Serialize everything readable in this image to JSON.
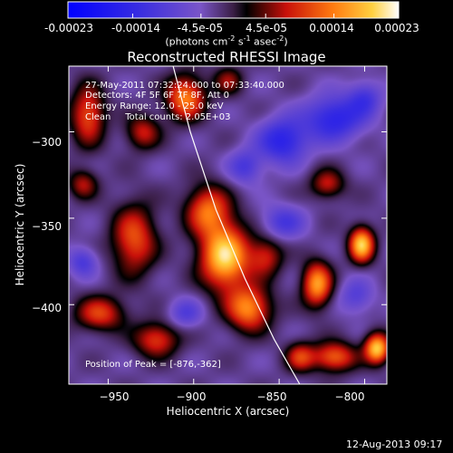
{
  "colorbar": {
    "tick_labels": [
      "-0.00023",
      "-0.00014",
      "-4.5e-05",
      "4.5e-05",
      "0.00014",
      "0.00023"
    ],
    "units_prefix": "(photons cm",
    "units_exp1": "-2",
    "units_mid": " s",
    "units_exp2": "-1",
    "units_mid2": " asec",
    "units_exp3": "-2",
    "units_suffix": ")",
    "range": [
      -0.00023,
      0.00023
    ]
  },
  "chart_data": {
    "type": "heatmap",
    "title": "Reconstructed RHESSI Image",
    "xlabel": "Heliocentric X (arcsec)",
    "ylabel": "Heliocentric Y (arcsec)",
    "xlim": [
      -973,
      -787
    ],
    "ylim": [
      -446,
      -262
    ],
    "x_ticks": [
      -950,
      -900,
      -850,
      -800
    ],
    "x_tick_labels": [
      "−950",
      "−900",
      "−850",
      "−800"
    ],
    "y_ticks": [
      -300,
      -350,
      -400
    ],
    "y_tick_labels": [
      "−300",
      "−350",
      "−400"
    ],
    "annotations": [
      "27-May-2011 07:32:24.000 to 07:33:40.000",
      "Detectors: 4F 5F 6F 7F 8F, Att 0",
      "Energy Range: 12.0 - 25.0 keV",
      "Clean     Total counts: 2.05E+03"
    ],
    "peak_label": "Position of Peak = [-876,-362]",
    "peak": [
      -876,
      -362
    ],
    "limb_curve": [
      [
        -912,
        -262
      ],
      [
        -902,
        -300
      ],
      [
        -887,
        -345
      ],
      [
        -870,
        -385
      ],
      [
        -853,
        -420
      ],
      [
        -838,
        -446
      ]
    ],
    "sources": [
      {
        "x": -882,
        "y": -372,
        "amp": 1.0,
        "sx": 10,
        "sy": 13
      },
      {
        "x": -892,
        "y": -345,
        "amp": 0.65,
        "sx": 9,
        "sy": 10
      },
      {
        "x": -868,
        "y": -402,
        "amp": 0.75,
        "sx": 9,
        "sy": 9
      },
      {
        "x": -858,
        "y": -372,
        "amp": 0.45,
        "sx": 7,
        "sy": 8
      },
      {
        "x": -935,
        "y": -362,
        "amp": 0.6,
        "sx": 9,
        "sy": 14
      },
      {
        "x": -955,
        "y": -405,
        "amp": 0.55,
        "sx": 10,
        "sy": 7
      },
      {
        "x": -922,
        "y": -420,
        "amp": 0.55,
        "sx": 9,
        "sy": 7
      },
      {
        "x": -962,
        "y": -290,
        "amp": 0.6,
        "sx": 7,
        "sy": 12
      },
      {
        "x": -905,
        "y": -280,
        "amp": 0.72,
        "sx": 8,
        "sy": 9
      },
      {
        "x": -930,
        "y": -300,
        "amp": 0.45,
        "sx": 7,
        "sy": 7
      },
      {
        "x": -802,
        "y": -365,
        "amp": 0.95,
        "sx": 5,
        "sy": 7
      },
      {
        "x": -828,
        "y": -388,
        "amp": 0.8,
        "sx": 6,
        "sy": 9
      },
      {
        "x": -822,
        "y": -330,
        "amp": 0.45,
        "sx": 7,
        "sy": 6
      },
      {
        "x": -818,
        "y": -430,
        "amp": 0.65,
        "sx": 9,
        "sy": 6
      },
      {
        "x": -793,
        "y": -425,
        "amp": 0.95,
        "sx": 5,
        "sy": 6
      },
      {
        "x": -838,
        "y": -430,
        "amp": 0.5,
        "sx": 6,
        "sy": 6
      },
      {
        "x": -880,
        "y": -270,
        "amp": 0.35,
        "sx": 6,
        "sy": 6
      },
      {
        "x": -965,
        "y": -330,
        "amp": 0.4,
        "sx": 6,
        "sy": 6
      },
      {
        "x": -870,
        "y": -320,
        "amp": -0.35,
        "sx": 7,
        "sy": 7
      },
      {
        "x": -848,
        "y": -305,
        "amp": -0.55,
        "sx": 10,
        "sy": 9
      },
      {
        "x": -818,
        "y": -292,
        "amp": -0.55,
        "sx": 12,
        "sy": 9
      },
      {
        "x": -800,
        "y": -280,
        "amp": -0.35,
        "sx": 7,
        "sy": 7
      },
      {
        "x": -848,
        "y": -352,
        "amp": -0.35,
        "sx": 9,
        "sy": 7
      },
      {
        "x": -805,
        "y": -395,
        "amp": -0.3,
        "sx": 7,
        "sy": 7
      },
      {
        "x": -965,
        "y": -375,
        "amp": -0.35,
        "sx": 6,
        "sy": 6
      },
      {
        "x": -905,
        "y": -405,
        "amp": -0.3,
        "sx": 7,
        "sy": 6
      }
    ]
  },
  "footer": {
    "timestamp": "12-Aug-2013 09:17"
  }
}
